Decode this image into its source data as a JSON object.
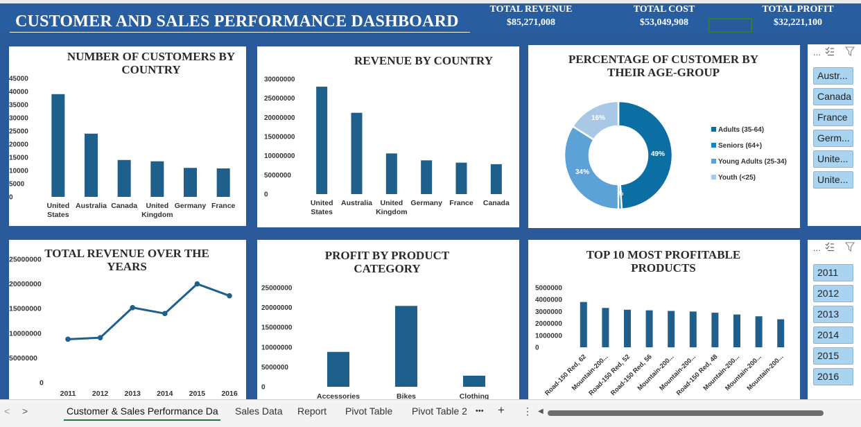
{
  "dashboard": {
    "title": "CUSTOMER AND SALES PERFORMANCE DASHBOARD",
    "kpis": [
      {
        "label": "TOTAL REVENUE",
        "value": "$85,271,008"
      },
      {
        "label": "TOTAL COST",
        "value": "$53,049,908"
      },
      {
        "label": "TOTAL PROFIT",
        "value": "$32,221,100"
      }
    ]
  },
  "chart_data": [
    {
      "type": "bar",
      "title": "NUMBER OF CUSTOMERS BY COUNTRY",
      "categories": [
        "United States",
        "Australia",
        "Canada",
        "United Kingdom",
        "Germany",
        "France"
      ],
      "values": [
        39000,
        24000,
        14000,
        13500,
        11000,
        10800
      ],
      "yticks": [
        "45000",
        "40000",
        "35000",
        "30000",
        "25000",
        "20000",
        "15000",
        "10000",
        "5000",
        "0"
      ],
      "ylim": [
        0,
        45000
      ],
      "color": "#1f5f8b"
    },
    {
      "type": "bar",
      "title": "REVENUE BY COUNTRY",
      "categories": [
        "United States",
        "Australia",
        "United Kingdom",
        "Germany",
        "France",
        "Canada"
      ],
      "values": [
        28000000,
        21200000,
        10600000,
        8800000,
        8200000,
        7800000
      ],
      "yticks": [
        "30000000",
        "25000000",
        "20000000",
        "15000000",
        "10000000",
        "5000000",
        "0"
      ],
      "ylim": [
        0,
        30000000
      ],
      "color": "#1f5f8b"
    },
    {
      "type": "pie",
      "title": "PERCENTAGE OF CUSTOMER BY THEIR AGE-GROUP",
      "slices": [
        {
          "label": "Adults (35-64)",
          "value": 49,
          "text": "49%",
          "color": "#0b6fa4"
        },
        {
          "label": "Seniors (64+)",
          "value": 1,
          "text": "1%",
          "color": "#1a86bd"
        },
        {
          "label": "Young Adults (25-34)",
          "value": 34,
          "text": "34%",
          "color": "#5ca2d6"
        },
        {
          "label": "Youth (<25)",
          "value": 16,
          "text": "16%",
          "color": "#a9c8e6"
        }
      ]
    },
    {
      "type": "line",
      "title": "TOTAL REVENUE OVER THE YEARS",
      "x": [
        "2011",
        "2012",
        "2013",
        "2014",
        "2015",
        "2016"
      ],
      "values": [
        8800000,
        9100000,
        15200000,
        14000000,
        20000000,
        17600000
      ],
      "yticks": [
        "25000000",
        "20000000",
        "15000000",
        "10000000",
        "5000000",
        "0"
      ],
      "ylim": [
        0,
        25000000
      ],
      "color": "#1f5f8b"
    },
    {
      "type": "bar",
      "title": "PROFIT BY PRODUCT CATEGORY",
      "categories": [
        "Accessories",
        "Bikes",
        "Clothing"
      ],
      "values": [
        8800000,
        20400000,
        2800000
      ],
      "yticks": [
        "25000000",
        "20000000",
        "15000000",
        "10000000",
        "5000000",
        "0"
      ],
      "ylim": [
        0,
        25000000
      ],
      "color": "#1f5f8b"
    },
    {
      "type": "bar",
      "title": "TOP 10 MOST PROFITABLE PRODUCTS",
      "categories": [
        "Road-150 Red, 62",
        "Mountain-200...",
        "Road-150 Red, 52",
        "Road-150 Red, 56",
        "Mountain-200...",
        "Mountain-200...",
        "Road-150 Red, 48",
        "Mountain-200...",
        "Mountain-200...",
        "Mountain-200..."
      ],
      "values": [
        3800000,
        3300000,
        3150000,
        3100000,
        3050000,
        3000000,
        2900000,
        2750000,
        2600000,
        2350000
      ],
      "yticks": [
        "5000000",
        "4000000",
        "3000000",
        "2000000",
        "1000000",
        "0"
      ],
      "ylim": [
        0,
        5000000
      ],
      "color": "#1f5f8b"
    }
  ],
  "slicers": {
    "country": {
      "header": "...",
      "items": [
        "Austr...",
        "Canada",
        "France",
        "Germ...",
        "Unite...",
        "Unite..."
      ]
    },
    "year": {
      "header": "...",
      "items": [
        "2011",
        "2012",
        "2013",
        "2014",
        "2015",
        "2016"
      ]
    }
  },
  "sheet_tabs": {
    "tabs": [
      "Customer & Sales Performance Da",
      "Sales Data",
      "Report",
      "Pivot Table",
      "Pivot Table 2"
    ],
    "more": "•••",
    "add": "+",
    "options": "⋮",
    "nav_prev": "<",
    "nav_next": ">",
    "scroll_left": "◀"
  }
}
